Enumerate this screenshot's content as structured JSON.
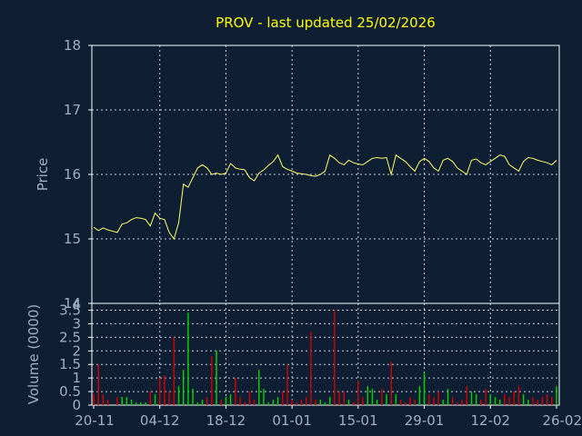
{
  "chart_data": [
    {
      "type": "line",
      "title": "PROV - last updated 25/02/2026",
      "ylabel": "Price",
      "ylim": [
        14,
        18
      ],
      "yticks": [
        14,
        15,
        16,
        17,
        18
      ],
      "xticks": [
        "20-11",
        "04-12",
        "18-12",
        "01-01",
        "15-01",
        "29-01",
        "12-02",
        "26-02"
      ],
      "grid": true,
      "color": "#ffff66",
      "x": [
        0,
        1,
        2,
        3,
        5,
        6,
        7,
        8,
        9,
        10,
        11,
        12,
        13,
        14,
        15,
        16,
        17,
        18,
        19,
        20,
        21,
        22,
        23,
        24,
        25,
        26,
        27,
        28,
        29,
        30,
        31,
        32,
        33,
        34,
        35,
        36,
        37,
        38,
        39,
        40,
        41,
        42,
        43,
        44,
        45,
        46,
        47,
        48,
        49,
        50,
        51,
        52,
        53,
        54,
        55,
        56,
        57,
        58,
        59,
        60,
        61,
        62,
        63,
        64,
        65,
        66,
        67,
        68,
        69,
        70,
        71,
        72,
        73,
        74,
        75,
        76,
        77,
        78,
        79,
        80,
        81,
        82,
        83,
        84,
        85,
        86,
        87,
        88,
        89,
        90,
        91,
        92,
        93,
        94,
        95,
        96,
        97,
        98
      ],
      "values": [
        15.18,
        15.13,
        15.17,
        15.14,
        15.1,
        15.23,
        15.25,
        15.3,
        15.33,
        15.32,
        15.3,
        15.2,
        15.4,
        15.32,
        15.3,
        15.1,
        15.0,
        15.25,
        15.85,
        15.8,
        15.95,
        16.1,
        16.15,
        16.1,
        16.0,
        16.02,
        16.0,
        16.02,
        16.17,
        16.1,
        16.08,
        16.07,
        15.95,
        15.9,
        16.02,
        16.07,
        16.14,
        16.2,
        16.3,
        16.12,
        16.08,
        16.05,
        16.02,
        16.01,
        16.0,
        15.98,
        15.97,
        16.0,
        16.05,
        16.3,
        16.25,
        16.18,
        16.15,
        16.22,
        16.18,
        16.16,
        16.15,
        16.2,
        16.25,
        16.26,
        16.25,
        16.26,
        16.0,
        16.3,
        16.25,
        16.2,
        16.12,
        16.05,
        16.2,
        16.25,
        16.2,
        16.1,
        16.05,
        16.22,
        16.25,
        16.2,
        16.1,
        16.05,
        16.0,
        16.22,
        16.24,
        16.18,
        16.15,
        16.2,
        16.25,
        16.3,
        16.28,
        16.15,
        16.1,
        16.05,
        16.2,
        16.26,
        16.25,
        16.22,
        16.2,
        16.18,
        16.15,
        16.22
      ]
    },
    {
      "type": "bar",
      "ylabel": "Volume (0000)",
      "ylim": [
        0,
        3.75
      ],
      "yticks": [
        0,
        0.5,
        1,
        1.5,
        2,
        2.5,
        3,
        3.5
      ],
      "ytick_labels": [
        "0",
        "0.5",
        "1",
        "1.5",
        "2",
        "2.5",
        "3",
        "3.5"
      ],
      "xticks": [
        "20-11",
        "04-12",
        "18-12",
        "01-01",
        "15-01",
        "29-01",
        "12-02",
        "26-02"
      ],
      "up_color": "#00cc00",
      "down_color": "#cc0000",
      "x": [
        0,
        1,
        2,
        3,
        5,
        6,
        7,
        8,
        9,
        10,
        11,
        12,
        13,
        14,
        15,
        16,
        17,
        18,
        19,
        20,
        21,
        22,
        23,
        24,
        25,
        26,
        27,
        28,
        29,
        30,
        31,
        32,
        33,
        34,
        35,
        36,
        37,
        38,
        39,
        40,
        41,
        42,
        43,
        44,
        45,
        46,
        47,
        48,
        49,
        50,
        51,
        52,
        53,
        54,
        55,
        56,
        57,
        58,
        59,
        60,
        61,
        62,
        63,
        64,
        65,
        66,
        67,
        68,
        69,
        70,
        71,
        72,
        73,
        74,
        75,
        76,
        77,
        78,
        79,
        80,
        81,
        82,
        83,
        84,
        85,
        86,
        87,
        88,
        89,
        90,
        91,
        92,
        93,
        94,
        95,
        96,
        97,
        98
      ],
      "values": [
        0.4,
        1.5,
        0.4,
        0.2,
        0.3,
        0.3,
        0.3,
        0.2,
        0.1,
        0.1,
        0.1,
        0.5,
        0.4,
        1.0,
        1.1,
        0.5,
        2.5,
        0.7,
        1.3,
        3.4,
        0.6,
        0.1,
        0.2,
        0.3,
        1.8,
        2.0,
        0.2,
        0.3,
        0.4,
        1.0,
        0.3,
        0.1,
        0.5,
        0.2,
        1.3,
        0.6,
        0.1,
        0.2,
        0.3,
        0.5,
        1.5,
        0.2,
        0.1,
        0.2,
        0.3,
        2.7,
        0.2,
        0.2,
        0.1,
        0.3,
        3.5,
        0.5,
        0.5,
        0.2,
        0.1,
        0.9,
        0.3,
        0.7,
        0.6,
        0.2,
        0.6,
        0.4,
        1.6,
        0.4,
        0.2,
        0.1,
        0.3,
        0.2,
        0.7,
        1.2,
        0.4,
        0.3,
        0.5,
        0.2,
        0.6,
        0.3,
        0.1,
        0.2,
        0.7,
        0.5,
        0.4,
        0.2,
        0.6,
        0.4,
        0.3,
        0.2,
        0.4,
        0.3,
        0.5,
        0.7,
        0.4,
        0.2,
        0.3,
        0.2,
        0.3,
        0.4,
        0.3,
        0.7
      ],
      "directions": [
        "d",
        "d",
        "d",
        "d",
        "d",
        "u",
        "u",
        "u",
        "u",
        "u",
        "u",
        "d",
        "u",
        "d",
        "d",
        "d",
        "d",
        "u",
        "u",
        "u",
        "u",
        "u",
        "u",
        "d",
        "d",
        "u",
        "d",
        "u",
        "u",
        "d",
        "d",
        "d",
        "d",
        "d",
        "u",
        "u",
        "u",
        "u",
        "u",
        "d",
        "d",
        "d",
        "d",
        "d",
        "d",
        "d",
        "d",
        "u",
        "u",
        "u",
        "d",
        "d",
        "d",
        "u",
        "d",
        "d",
        "d",
        "u",
        "u",
        "u",
        "d",
        "u",
        "d",
        "u",
        "d",
        "d",
        "d",
        "d",
        "u",
        "u",
        "d",
        "d",
        "d",
        "u",
        "u",
        "d",
        "d",
        "d",
        "d",
        "u",
        "u",
        "d",
        "d",
        "u",
        "u",
        "u",
        "d",
        "d",
        "d",
        "d",
        "u",
        "u",
        "d",
        "d",
        "d",
        "d",
        "d",
        "u"
      ]
    }
  ]
}
